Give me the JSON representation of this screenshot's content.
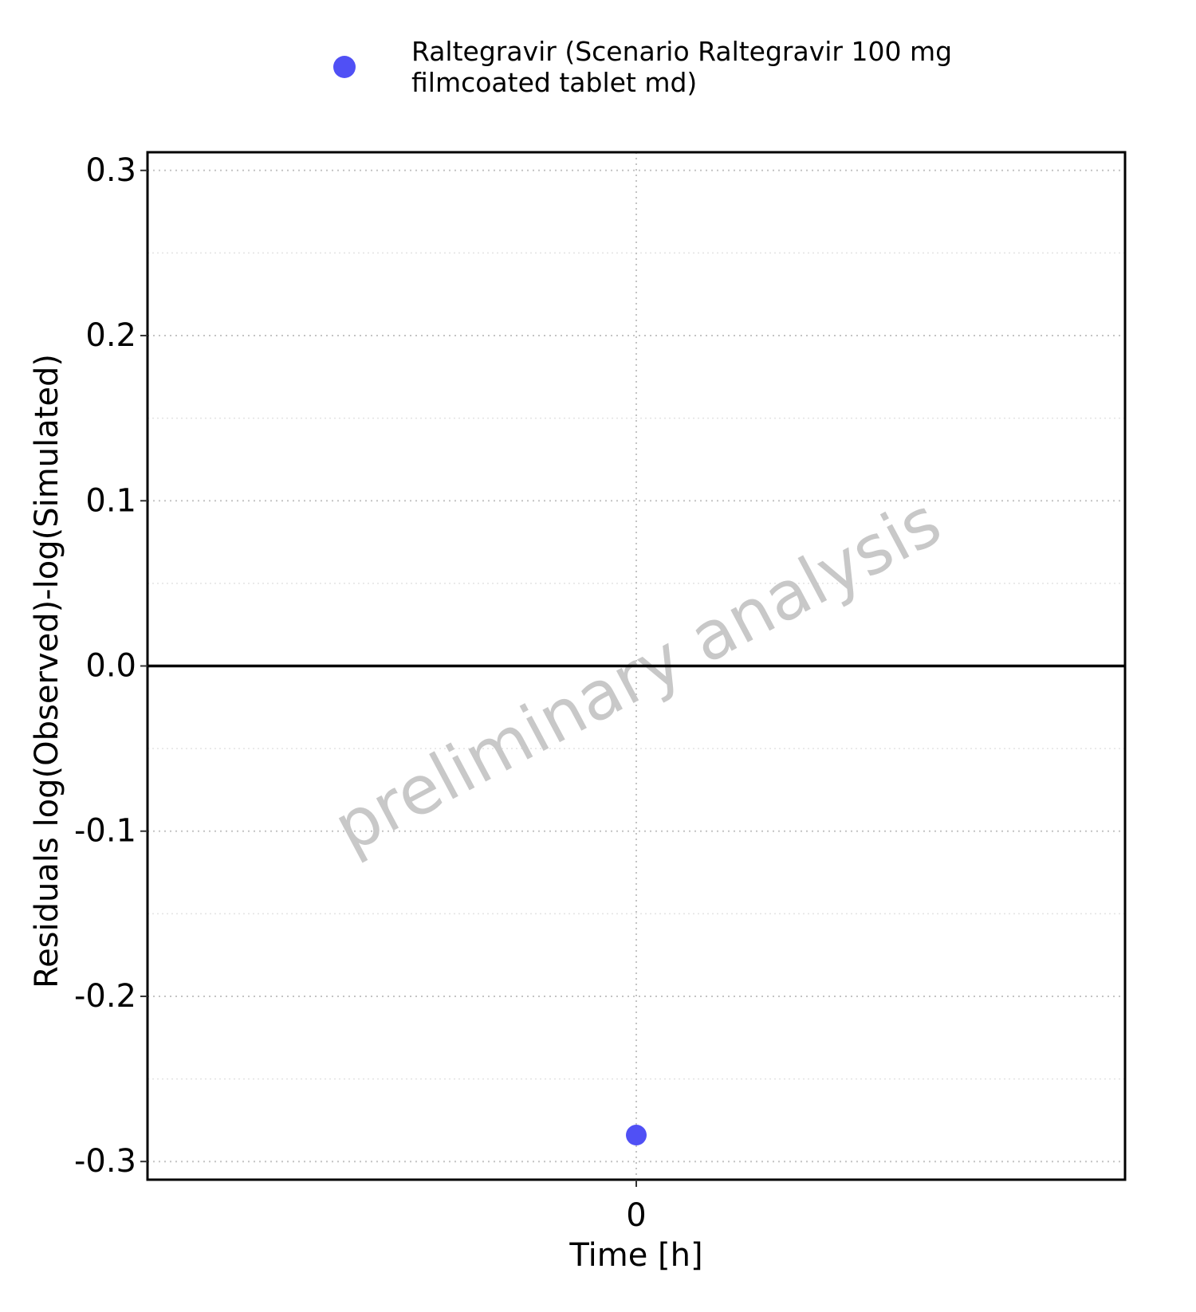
{
  "chart_data": {
    "type": "scatter",
    "title": "",
    "xlabel": "Time [h]",
    "ylabel": "Residuals log(Observed)-log(Simulated)",
    "x_ticks": [
      "0"
    ],
    "y_ticks": [
      "0.3",
      "0.2",
      "0.1",
      "0.0",
      "-0.1",
      "-0.2",
      "-0.3"
    ],
    "y_tick_values": [
      0.3,
      0.2,
      0.1,
      0.0,
      -0.1,
      -0.2,
      -0.3
    ],
    "ylim": [
      -0.311,
      0.311
    ],
    "xlim": [
      -1,
      1
    ],
    "grid": "dotted, major and minor",
    "reference_line_y": 0.0,
    "legend": {
      "position": "top",
      "entries": [
        {
          "label_line1": "Raltegravir (Scenario Raltegravir 100 mg",
          "label_line2": "filmcoated tablet md)",
          "color": "#5050f5"
        }
      ]
    },
    "series": [
      {
        "name": "Raltegravir (Scenario Raltegravir 100 mg filmcoated tablet md)",
        "color": "#5050f5",
        "points": [
          {
            "x": 0,
            "y": -0.284
          }
        ]
      }
    ],
    "watermark": "preliminary analysis"
  }
}
